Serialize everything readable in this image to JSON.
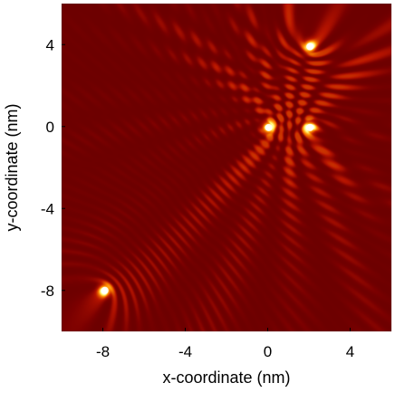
{
  "chart_data": {
    "type": "heatmap",
    "title": "",
    "xlabel": "x-coordinate (nm)",
    "ylabel": "y-coordinate (nm)",
    "xlim": [
      -10,
      6
    ],
    "ylim": [
      -10,
      6
    ],
    "x_ticks": [
      {
        "value": -8,
        "label": "-8"
      },
      {
        "value": -4,
        "label": "-4"
      },
      {
        "value": 0,
        "label": "0"
      },
      {
        "value": 4,
        "label": "4"
      }
    ],
    "y_ticks": [
      {
        "value": 4,
        "label": "4"
      },
      {
        "value": 0,
        "label": "0"
      },
      {
        "value": -4,
        "label": "-4"
      },
      {
        "value": -8,
        "label": "-8"
      }
    ],
    "colormap": [
      "#2a0000",
      "#7a0000",
      "#b81500",
      "#ff8a00",
      "#ffff7a",
      "#ffffff"
    ],
    "wave_period_nm": 0.75,
    "sources": [
      {
        "x": 2.05,
        "y": 3.9
      },
      {
        "x": 0.05,
        "y": -0.05
      },
      {
        "x": 2.05,
        "y": -0.05
      },
      {
        "x": -7.9,
        "y": -8.0
      }
    ],
    "grid": false,
    "legend": "none"
  }
}
